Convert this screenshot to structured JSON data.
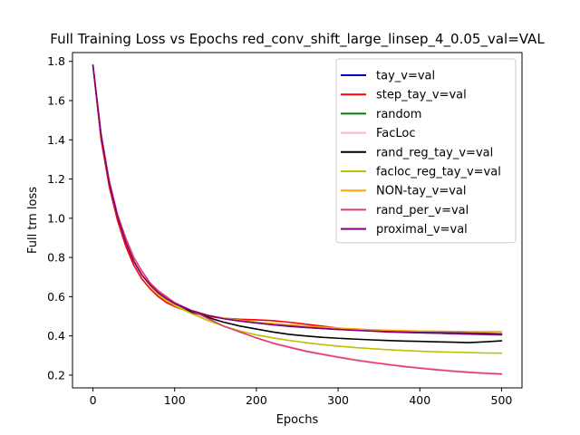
{
  "chart_data": {
    "type": "line",
    "title": "Full Training Loss vs Epochs red_conv_shift_large_linsep_4_0.05_val=VAL",
    "xlabel": "Epochs",
    "ylabel": "Full trn loss",
    "xlim": [
      -25,
      525
    ],
    "ylim": [
      0.135,
      1.845
    ],
    "xticks": [
      0,
      100,
      200,
      300,
      400,
      500
    ],
    "yticks": [
      0.2,
      0.4,
      0.6,
      0.8,
      1.0,
      1.2,
      1.4,
      1.6,
      1.8
    ],
    "xtick_labels": [
      "0",
      "100",
      "200",
      "300",
      "400",
      "500"
    ],
    "ytick_labels": [
      "0.2",
      "0.4",
      "0.6",
      "0.8",
      "1.0",
      "1.2",
      "1.4",
      "1.6",
      "1.8"
    ],
    "grid": false,
    "legend_position": "top-right",
    "x": [
      0,
      10,
      20,
      30,
      40,
      50,
      60,
      70,
      80,
      90,
      100,
      120,
      140,
      160,
      180,
      200,
      220,
      240,
      260,
      280,
      300,
      320,
      340,
      360,
      380,
      400,
      420,
      440,
      460,
      480,
      500
    ],
    "series": [
      {
        "name": "tay_v=val",
        "color": "#0000cc",
        "values": [
          1.78,
          1.42,
          1.18,
          1.01,
          0.88,
          0.78,
          0.71,
          0.66,
          0.62,
          0.59,
          0.565,
          0.53,
          0.505,
          0.488,
          0.476,
          0.466,
          0.457,
          0.449,
          0.443,
          0.438,
          0.434,
          0.43,
          0.427,
          0.425,
          0.423,
          0.421,
          0.419,
          0.417,
          0.415,
          0.413,
          0.411
        ]
      },
      {
        "name": "step_tay_v=val",
        "color": "#ff0000",
        "values": [
          1.78,
          1.4,
          1.16,
          0.99,
          0.86,
          0.76,
          0.69,
          0.64,
          0.6,
          0.57,
          0.55,
          0.52,
          0.5,
          0.49,
          0.485,
          0.482,
          0.478,
          0.47,
          0.46,
          0.45,
          0.44,
          0.43,
          0.425,
          0.42,
          0.418,
          0.416,
          0.414,
          0.413,
          0.412,
          0.411,
          0.41
        ]
      },
      {
        "name": "random",
        "color": "#008000",
        "values": [
          1.78,
          1.42,
          1.18,
          1.01,
          0.88,
          0.78,
          0.71,
          0.66,
          0.62,
          0.59,
          0.565,
          0.53,
          0.505,
          0.49,
          0.48,
          0.47,
          0.462,
          0.455,
          0.448,
          0.442,
          0.437,
          0.432,
          0.428,
          0.424,
          0.42,
          0.417,
          0.414,
          0.411,
          0.409,
          0.407,
          0.405
        ]
      },
      {
        "name": "FacLoc",
        "color": "#ffb6c1",
        "values": [
          1.78,
          1.43,
          1.19,
          1.02,
          0.9,
          0.8,
          0.73,
          0.67,
          0.63,
          0.6,
          0.57,
          0.53,
          0.49,
          0.45,
          0.42,
          0.39,
          0.365,
          0.345,
          0.325,
          0.31,
          0.295,
          0.28,
          0.268,
          0.257,
          0.247,
          0.238,
          0.23,
          0.223,
          0.217,
          0.212,
          0.208
        ]
      },
      {
        "name": "rand_reg_tay_v=val",
        "color": "#000000",
        "values": [
          1.78,
          1.42,
          1.18,
          1.01,
          0.88,
          0.78,
          0.71,
          0.66,
          0.62,
          0.59,
          0.565,
          0.525,
          0.495,
          0.47,
          0.45,
          0.435,
          0.42,
          0.408,
          0.4,
          0.393,
          0.388,
          0.384,
          0.38,
          0.377,
          0.374,
          0.372,
          0.37,
          0.368,
          0.366,
          0.37,
          0.375
        ]
      },
      {
        "name": "facloc_reg_tay_v=val",
        "color": "#bfbf00",
        "values": [
          1.78,
          1.42,
          1.18,
          1.01,
          0.88,
          0.78,
          0.71,
          0.655,
          0.61,
          0.58,
          0.555,
          0.515,
          0.48,
          0.45,
          0.425,
          0.405,
          0.39,
          0.377,
          0.366,
          0.356,
          0.348,
          0.341,
          0.335,
          0.33,
          0.326,
          0.322,
          0.319,
          0.317,
          0.315,
          0.313,
          0.312
        ]
      },
      {
        "name": "NON-tay_v=val",
        "color": "#ffa500",
        "values": [
          1.78,
          1.42,
          1.18,
          1.01,
          0.88,
          0.78,
          0.71,
          0.66,
          0.62,
          0.59,
          0.565,
          0.53,
          0.505,
          0.49,
          0.48,
          0.47,
          0.463,
          0.457,
          0.45,
          0.445,
          0.44,
          0.436,
          0.432,
          0.429,
          0.427,
          0.425,
          0.424,
          0.423,
          0.422,
          0.422,
          0.422
        ]
      },
      {
        "name": "rand_per_v=val",
        "color": "#dc3c78",
        "values": [
          1.78,
          1.43,
          1.19,
          1.02,
          0.9,
          0.8,
          0.73,
          0.67,
          0.63,
          0.6,
          0.57,
          0.53,
          0.49,
          0.45,
          0.42,
          0.39,
          0.363,
          0.342,
          0.322,
          0.306,
          0.291,
          0.277,
          0.265,
          0.254,
          0.244,
          0.235,
          0.227,
          0.22,
          0.214,
          0.209,
          0.205
        ]
      },
      {
        "name": "proximal_v=val",
        "color": "#800080",
        "values": [
          1.78,
          1.42,
          1.18,
          1.01,
          0.88,
          0.78,
          0.71,
          0.66,
          0.62,
          0.59,
          0.565,
          0.53,
          0.505,
          0.488,
          0.476,
          0.466,
          0.457,
          0.45,
          0.444,
          0.438,
          0.433,
          0.429,
          0.425,
          0.422,
          0.419,
          0.416,
          0.414,
          0.412,
          0.41,
          0.409,
          0.408
        ]
      }
    ]
  }
}
